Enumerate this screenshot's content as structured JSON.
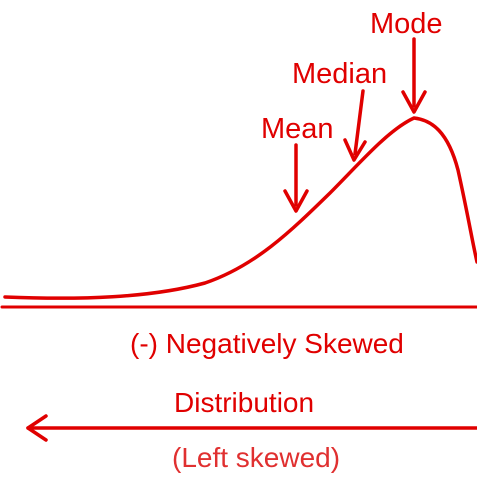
{
  "colors": {
    "stroke": "#e00000",
    "text": "#e00000",
    "text_light": "#e03030",
    "background": "#ffffff"
  },
  "labels": {
    "mode": "Mode",
    "median": "Median",
    "mean": "Mean",
    "skew_title": "(-) Negatively Skewed",
    "distribution": "Distribution",
    "left_skewed": "(Left skewed)"
  },
  "icons": {
    "curve": "negatively-skewed-curve",
    "direction_arrow": "left-arrow",
    "pointer_arrow": "down-arrow"
  }
}
